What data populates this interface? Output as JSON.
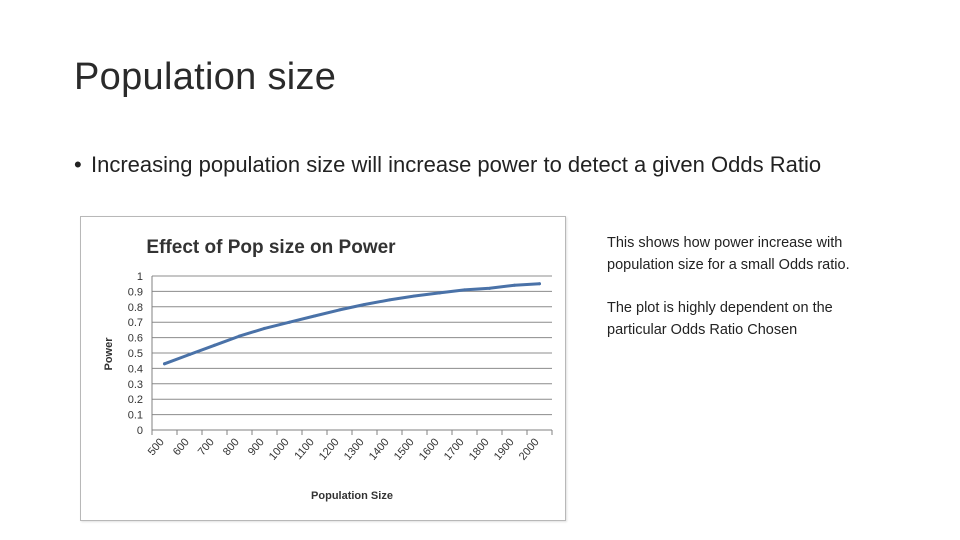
{
  "slide": {
    "title": "Population size",
    "bullet": "Increasing population size will increase power to detect a given Odds Ratio",
    "notes": [
      "This shows how power increase with population size for a small Odds ratio.",
      "The plot is highly dependent on the particular Odds Ratio Chosen"
    ]
  },
  "chart_data": {
    "type": "line",
    "title": "Effect of Pop size on Power",
    "xlabel": "Population Size",
    "ylabel": "Power",
    "categories": [
      "500",
      "600",
      "700",
      "800",
      "900",
      "1000",
      "1100",
      "1200",
      "1300",
      "1400",
      "1500",
      "1600",
      "1700",
      "1800",
      "1900",
      "2000"
    ],
    "series": [
      {
        "values": [
          0.43,
          0.49,
          0.55,
          0.61,
          0.66,
          0.7,
          0.74,
          0.78,
          0.815,
          0.845,
          0.87,
          0.89,
          0.91,
          0.92,
          0.94,
          0.95
        ]
      }
    ],
    "yticks": [
      "0",
      "0.1",
      "0.2",
      "0.3",
      "0.4",
      "0.5",
      "0.6",
      "0.7",
      "0.8",
      "0.9",
      "1"
    ],
    "ylim": [
      0,
      1
    ],
    "grid": true,
    "legend": false,
    "colors": {
      "line": "#4a72a8",
      "grid": "#8c8c8c",
      "axis": "#808080",
      "title": "#333333"
    }
  }
}
